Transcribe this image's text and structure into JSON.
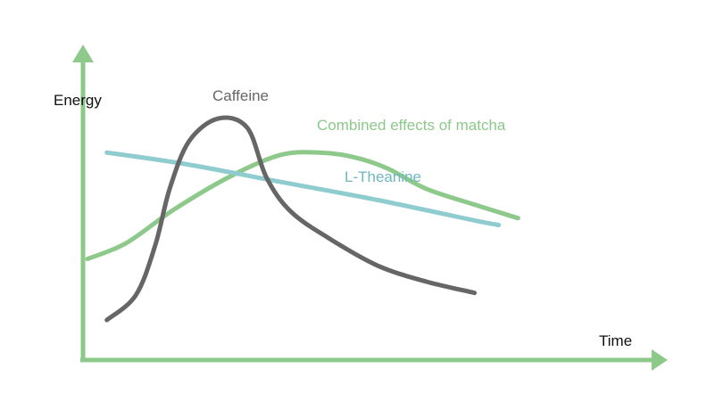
{
  "chart_data": {
    "type": "line",
    "xlabel": "Time",
    "ylabel": "Energy",
    "xlim": [
      0,
      100
    ],
    "ylim": [
      0,
      100
    ],
    "grid": false,
    "legend": "inline labels",
    "series": [
      {
        "name": "Caffeine",
        "color": "#666666",
        "x": [
          4,
          10,
          14,
          17,
          21,
          27,
          33,
          37,
          42,
          50,
          60,
          70,
          80
        ],
        "y": [
          9,
          20,
          42,
          67,
          88,
          98,
          94,
          72,
          57,
          45,
          33,
          26,
          21
        ]
      },
      {
        "name": "L-Theanine",
        "color": "#8ecccf",
        "x": [
          4,
          20,
          40,
          60,
          80,
          85
        ],
        "y": [
          83,
          78,
          70,
          62,
          53,
          51
        ]
      },
      {
        "name": "Combined effects of matcha",
        "color": "#8cc98a",
        "x": [
          0,
          8,
          18,
          30,
          40,
          48,
          55,
          62,
          70,
          80,
          89
        ],
        "y": [
          36,
          43,
          58,
          73,
          82,
          83,
          81,
          76,
          67,
          60,
          54
        ]
      }
    ]
  }
}
